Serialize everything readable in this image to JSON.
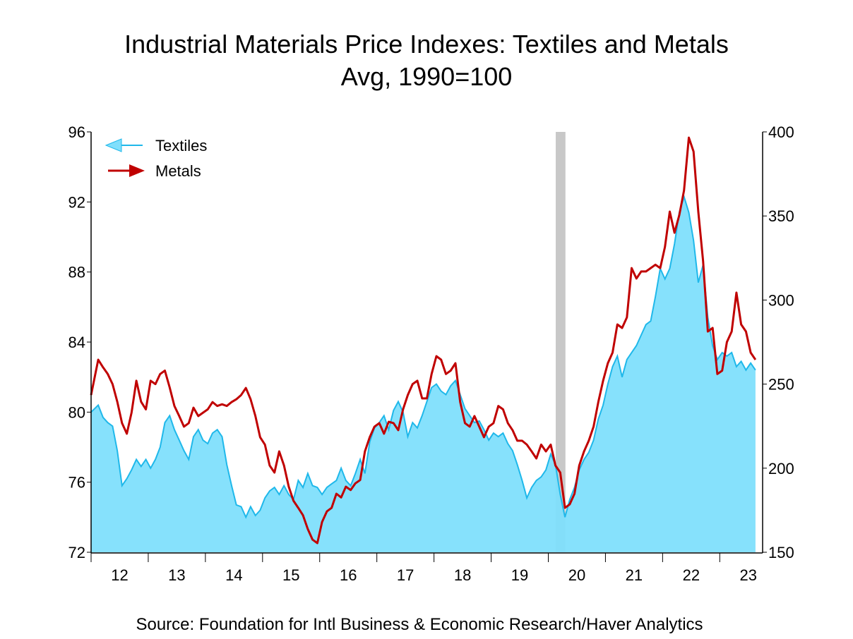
{
  "chart_data": {
    "type": "area+line",
    "title": "Industrial Materials Price Indexes: Textiles and Metals",
    "subtitle": "Avg, 1990=100",
    "source": "Source:  Foundation for Intl Business & Economic Research/Haver Analytics",
    "x_start": 2012.0,
    "x_end": 2023.75,
    "frequency": "monthly",
    "x_tick_labels": [
      "12",
      "13",
      "14",
      "15",
      "16",
      "17",
      "18",
      "19",
      "20",
      "21",
      "22",
      "23"
    ],
    "left_axis": {
      "ylim": [
        72,
        96
      ],
      "ticks": [
        "72",
        "76",
        "80",
        "84",
        "88",
        "92",
        "96"
      ]
    },
    "right_axis": {
      "ylim": [
        150,
        400
      ],
      "ticks": [
        "150",
        "200",
        "250",
        "300",
        "350",
        "400"
      ]
    },
    "recession_shading": [
      [
        2020.13,
        2020.3
      ]
    ],
    "legend": "top-left",
    "grid": false,
    "series": [
      {
        "name": "Textiles",
        "axis": "left",
        "style": "area",
        "color": "#1fb8ea",
        "fill": "#80dffc",
        "values": [
          80,
          80.4,
          79.7,
          79.4,
          79.2,
          77.8,
          75.8,
          76.2,
          76.7,
          77.3,
          76.9,
          77.3,
          76.8,
          77.3,
          78,
          79.4,
          79.8,
          79,
          78.4,
          77.8,
          77.3,
          78.6,
          79,
          78.4,
          78.2,
          78.8,
          79,
          78.6,
          77,
          75.8,
          74.7,
          74.6,
          74,
          74.6,
          74.1,
          74.4,
          75.1,
          75.5,
          75.7,
          75.3,
          75.8,
          75.3,
          75,
          76.1,
          75.7,
          76.5,
          75.8,
          75.7,
          75.3,
          75.7,
          75.9,
          76.1,
          76.8,
          76.1,
          75.8,
          76.5,
          77.3,
          76.5,
          78.3,
          79.1,
          79.4,
          79.8,
          79,
          80.1,
          80.6,
          80,
          78.6,
          79.4,
          79.1,
          79.8,
          80.6,
          81.4,
          81.6,
          81.2,
          81,
          81.5,
          81.8,
          81,
          80.2,
          79.8,
          79.4,
          79.5,
          79,
          78.4,
          78.8,
          78.6,
          78.8,
          78.2,
          77.8,
          77,
          76.1,
          75.1,
          75.7,
          76.1,
          76.3,
          76.7,
          77.6,
          77,
          75.3,
          74,
          75,
          75.7,
          76.7,
          77.3,
          77.7,
          78.4,
          79.6,
          80.4,
          81.6,
          82.6,
          83.2,
          82,
          83,
          83.4,
          83.8,
          84.4,
          85,
          85.2,
          86.6,
          88.2,
          87.6,
          88.2,
          89.6,
          91.4,
          92.3,
          91.4,
          89.8,
          87.4,
          88.4,
          85.4,
          83.8,
          83,
          83.4,
          83.2,
          83.4,
          82.6,
          82.9,
          82.4,
          82.8,
          82.4
        ]
      },
      {
        "name": "Metals",
        "axis": "right",
        "style": "line",
        "color": "#c00000",
        "values": [
          243.5,
          264.5,
          260,
          256,
          250,
          239.5,
          226.8,
          220.5,
          233,
          252,
          239.5,
          235,
          252,
          250,
          256,
          258,
          248,
          237,
          231,
          224.7,
          226.8,
          236,
          231,
          233,
          235,
          239.3,
          237,
          238,
          237,
          239.3,
          241,
          243.5,
          247.7,
          241,
          231,
          218.4,
          214,
          201.6,
          197.4,
          210,
          201.6,
          189,
          180.6,
          176.4,
          172,
          163.8,
          157.5,
          155.4,
          168,
          174.3,
          176.4,
          184.8,
          182.6,
          189,
          187,
          191,
          193,
          210,
          218.4,
          224.7,
          226.8,
          220.5,
          227.6,
          226.8,
          222.6,
          235,
          243.5,
          250,
          252,
          241.5,
          241.5,
          256,
          266.6,
          264.5,
          256,
          258,
          262.4,
          239.4,
          226.8,
          224.7,
          231,
          224.7,
          218.4,
          224.7,
          226.8,
          237,
          235,
          226.8,
          222.6,
          216.3,
          216.3,
          214,
          210,
          205.8,
          214,
          210,
          214,
          201.6,
          197.4,
          176.4,
          178.5,
          184.8,
          201.6,
          210,
          216.3,
          224.7,
          239.3,
          252,
          262.4,
          268.7,
          285.5,
          283.4,
          289.7,
          319,
          312.8,
          317,
          317,
          319,
          321,
          319,
          331.6,
          352.6,
          340,
          350.5,
          365.2,
          396.6,
          388.3,
          352.6,
          323.2,
          281.3,
          283.4,
          256,
          258,
          275,
          281.3,
          304.4,
          285.5,
          281.3,
          268.7,
          264.5
        ]
      }
    ]
  }
}
